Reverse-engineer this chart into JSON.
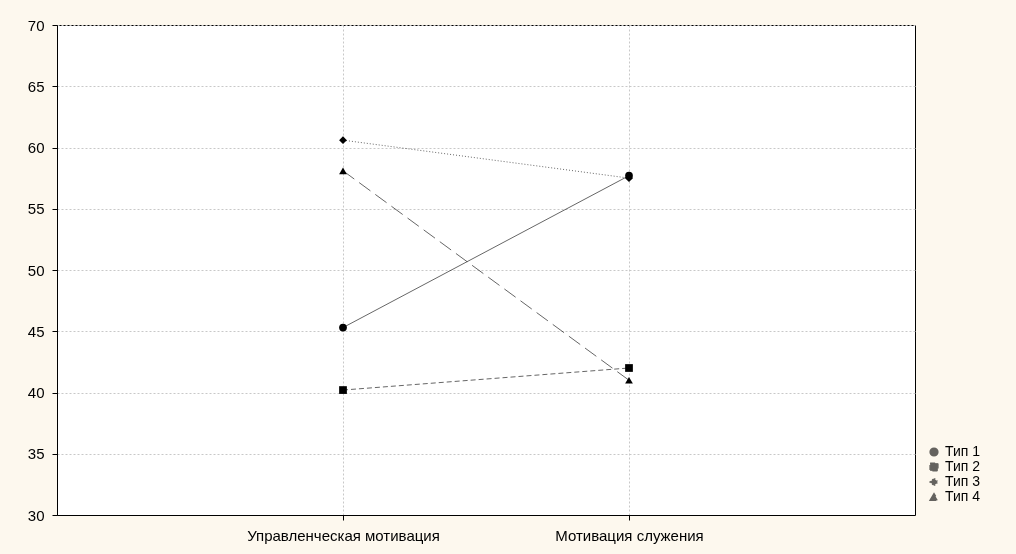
{
  "chart_data": {
    "type": "line",
    "categories": [
      "Управленческая мотивация",
      "Мотивация служения"
    ],
    "series": [
      {
        "name": "Тип 1",
        "color": "#000000",
        "values": [
          45.3,
          57.7
        ],
        "marker": "circle",
        "line_style": "solid"
      },
      {
        "name": "Тип 2",
        "color": "#000000",
        "values": [
          40.2,
          42.0
        ],
        "marker": "square",
        "line_style": "dashed"
      },
      {
        "name": "Тип 3",
        "color": "#000000",
        "values": [
          60.6,
          57.5
        ],
        "marker": "diamond",
        "line_style": "dotted"
      },
      {
        "name": "Тип 4",
        "color": "#000000",
        "values": [
          58.1,
          41.0
        ],
        "marker": "triangle",
        "line_style": "dashed"
      }
    ],
    "ylim": [
      30,
      70
    ],
    "yticks": [
      30,
      35,
      40,
      45,
      50,
      55,
      60,
      65,
      70
    ],
    "grid": true,
    "legend": "bottom right"
  }
}
